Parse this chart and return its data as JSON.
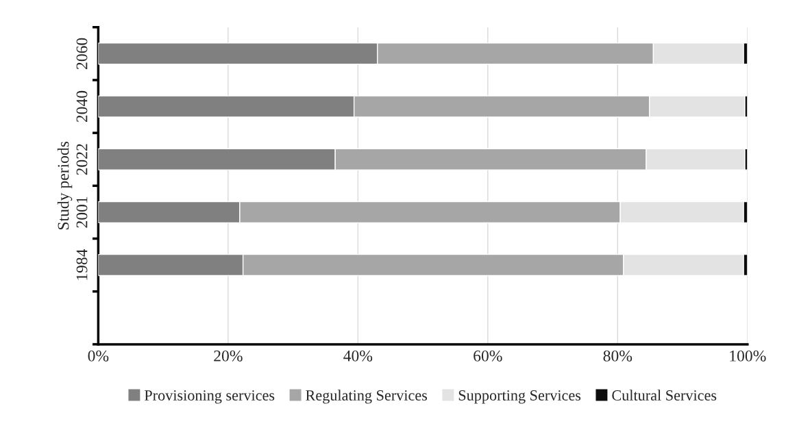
{
  "chart_data": {
    "type": "bar",
    "orientation": "horizontal",
    "stacked": true,
    "ylabel": "Study periods",
    "categories": [
      "2060",
      "2040",
      "2022",
      "2001",
      "1984",
      null
    ],
    "series": [
      {
        "name": "Provisioning services",
        "color": "#808080",
        "values": [
          43.0,
          39.4,
          36.5,
          21.8,
          22.3,
          null
        ]
      },
      {
        "name": "Regulating Services",
        "color": "#a6a6a6",
        "values": [
          42.5,
          45.5,
          47.9,
          58.6,
          58.6,
          null
        ]
      },
      {
        "name": "Supporting Services",
        "color": "#e3e3e3",
        "values": [
          13.9,
          14.7,
          15.2,
          19.0,
          18.5,
          null
        ]
      },
      {
        "name": "Cultural Services",
        "color": "#0d0d0d",
        "values": [
          0.6,
          0.4,
          0.4,
          0.6,
          0.6,
          null
        ]
      }
    ],
    "xlim": [
      0,
      100
    ],
    "xticks": [
      {
        "value": 0,
        "label": "0%"
      },
      {
        "value": 20,
        "label": "20%"
      },
      {
        "value": 40,
        "label": "40%"
      },
      {
        "value": 60,
        "label": "60%"
      },
      {
        "value": 80,
        "label": "80%"
      },
      {
        "value": 100,
        "label": "100%"
      }
    ],
    "grid": "x",
    "legend": "bottom"
  }
}
